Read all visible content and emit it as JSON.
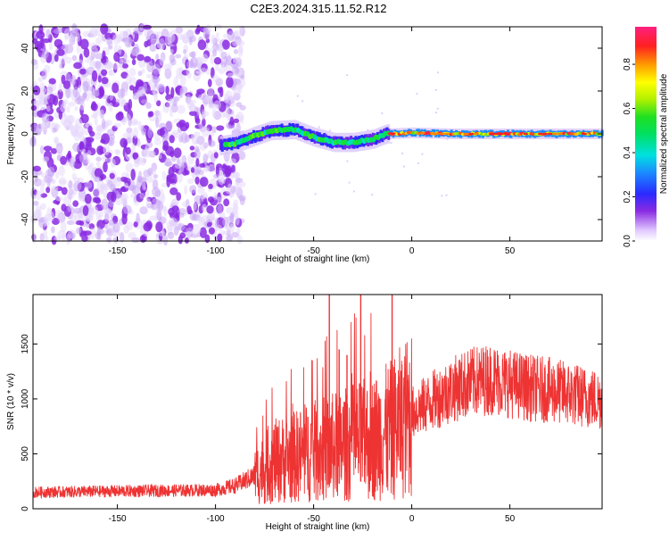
{
  "title": "C2E3.2024.315.11.52.R12",
  "chart_data": [
    {
      "type": "heatmap",
      "xlabel": "Height of straight line (km)",
      "ylabel": "Frequency (Hz)",
      "xlim": [
        -193,
        97
      ],
      "ylim": [
        -50,
        50
      ],
      "xticks": [
        -150,
        -100,
        -50,
        0,
        50
      ],
      "yticks": [
        -40,
        -20,
        0,
        20,
        40
      ],
      "colorbar": {
        "label": "Normalized spectral amplitude",
        "range": [
          0.0,
          0.97
        ],
        "ticks": [
          0.0,
          0.2,
          0.4,
          0.6,
          0.8
        ]
      },
      "features": {
        "noise_region_x": [
          -193,
          -88
        ],
        "tone_region_x": [
          -98,
          97
        ],
        "tone_frequency_track": [
          {
            "x": -98,
            "y": -5.5
          },
          {
            "x": -90,
            "y": -4.5
          },
          {
            "x": -80,
            "y": -1
          },
          {
            "x": -72,
            "y": 1.5
          },
          {
            "x": -60,
            "y": 2
          },
          {
            "x": -50,
            "y": -1.5
          },
          {
            "x": -40,
            "y": -4
          },
          {
            "x": -30,
            "y": -4
          },
          {
            "x": -20,
            "y": -2.5
          },
          {
            "x": -13,
            "y": 0
          },
          {
            "x": 0,
            "y": 0.5
          },
          {
            "x": 20,
            "y": 0
          },
          {
            "x": 50,
            "y": 0
          },
          {
            "x": 97,
            "y": 0
          }
        ]
      }
    },
    {
      "type": "line",
      "xlabel": "Height of straight line (km)",
      "ylabel": "SNR (10 * v/v)",
      "xlim": [
        -193,
        97
      ],
      "ylim": [
        0,
        1950
      ],
      "xticks": [
        -150,
        -100,
        -50,
        0,
        50
      ],
      "yticks": [
        0,
        500,
        1000,
        1500
      ],
      "series_color": "#ee3333",
      "envelope": [
        {
          "x": -193,
          "y": 150
        },
        {
          "x": -150,
          "y": 160
        },
        {
          "x": -100,
          "y": 170
        },
        {
          "x": -90,
          "y": 210
        },
        {
          "x": -80,
          "y": 300
        },
        {
          "x": -70,
          "y": 430
        },
        {
          "x": -60,
          "y": 470
        },
        {
          "x": -50,
          "y": 520
        },
        {
          "x": -40,
          "y": 560
        },
        {
          "x": -30,
          "y": 600
        },
        {
          "x": -20,
          "y": 640
        },
        {
          "x": -10,
          "y": 720
        },
        {
          "x": 0,
          "y": 870
        },
        {
          "x": 10,
          "y": 980
        },
        {
          "x": 20,
          "y": 1080
        },
        {
          "x": 30,
          "y": 1150
        },
        {
          "x": 40,
          "y": 1180
        },
        {
          "x": 50,
          "y": 1140
        },
        {
          "x": 60,
          "y": 1100
        },
        {
          "x": 70,
          "y": 1080
        },
        {
          "x": 80,
          "y": 1050
        },
        {
          "x": 90,
          "y": 1010
        },
        {
          "x": 97,
          "y": 990
        }
      ],
      "spikes": [
        {
          "x": -42,
          "y": 1950
        },
        {
          "x": -37,
          "y": 1450
        },
        {
          "x": -33,
          "y": 1400
        },
        {
          "x": -26,
          "y": 1950
        },
        {
          "x": -21,
          "y": 1250
        },
        {
          "x": -10,
          "y": 1950
        }
      ]
    }
  ]
}
